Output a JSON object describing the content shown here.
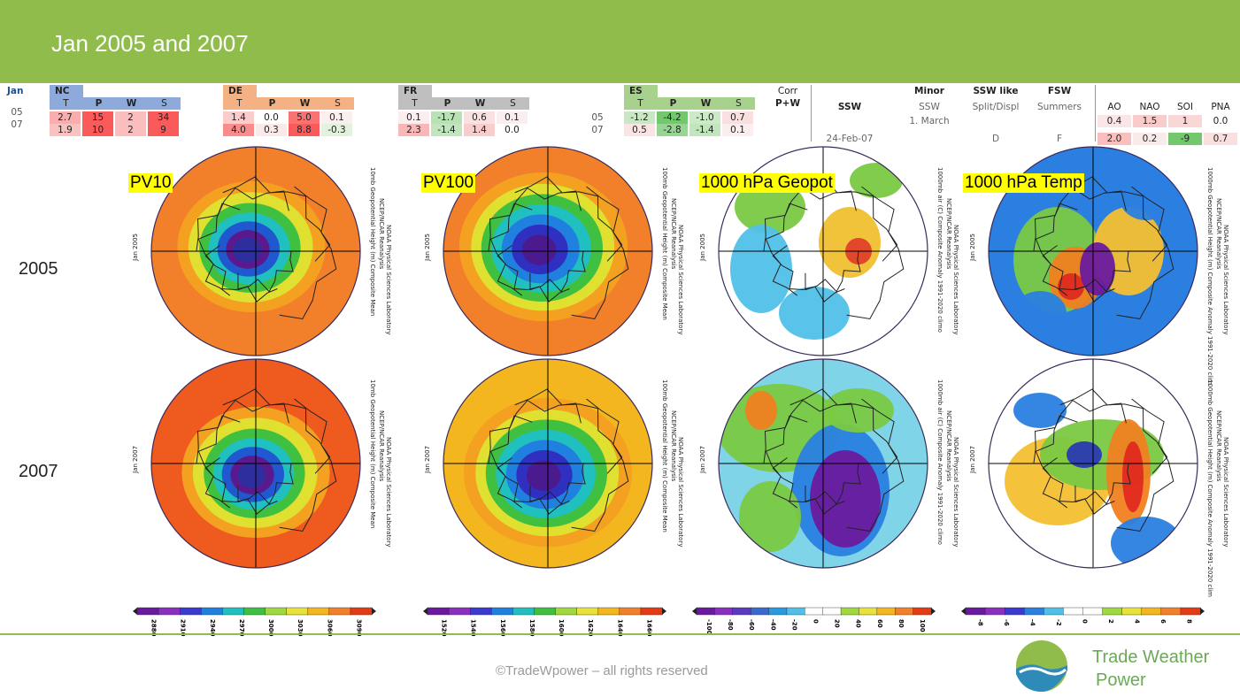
{
  "title": "Jan 2005 and 2007",
  "table": {
    "row_label_header": "Jan",
    "rows": [
      "05",
      "07"
    ],
    "groups": [
      {
        "name": "NC",
        "cols": [
          "T",
          "P",
          "W",
          "S"
        ],
        "values": [
          [
            "2.7",
            "15",
            "2",
            "34"
          ],
          [
            "1.9",
            "10",
            "2",
            "9"
          ]
        ]
      },
      {
        "name": "DE",
        "cols": [
          "T",
          "P",
          "W",
          "S"
        ],
        "values": [
          [
            "1.4",
            "0.0",
            "5.0",
            "0.1"
          ],
          [
            "4.0",
            "0.3",
            "8.8",
            "-0.3"
          ]
        ]
      },
      {
        "name": "FR",
        "cols": [
          "T",
          "P",
          "W",
          "S"
        ],
        "values": [
          [
            "0.1",
            "-1.7",
            "0.6",
            "0.1"
          ],
          [
            "2.3",
            "-1.4",
            "1.4",
            "0.0"
          ]
        ]
      },
      {
        "name": "ES",
        "cols": [
          "T",
          "P",
          "W",
          "S"
        ],
        "values": [
          [
            "-1.2",
            "-4.2",
            "-1.0",
            "0.7"
          ],
          [
            "0.5",
            "-2.8",
            "-1.4",
            "0.1"
          ]
        ]
      }
    ],
    "corr_label": "Corr",
    "corr_sub": "P+W",
    "ssw": {
      "header": "SSW",
      "v07": "24-Feb-07"
    },
    "minor": {
      "header": "Minor",
      "sub": "SSW",
      "v05": "1. March"
    },
    "ssw_like": {
      "header": "SSW like",
      "sub": "Split/Displ",
      "v07": "D"
    },
    "fsw": {
      "header": "FSW",
      "sub": "Summers",
      "v07": "F"
    },
    "indices": {
      "cols": [
        "AO",
        "NAO",
        "SOI",
        "PNA"
      ],
      "values": [
        [
          "0.4",
          "1.5",
          "1",
          "0.0"
        ],
        [
          "2.0",
          "0.2",
          "-9",
          "0.7"
        ]
      ]
    }
  },
  "rows": [
    {
      "label": "2005",
      "jan": "Jan 2005"
    },
    {
      "label": "2007",
      "jan": "Jan 2007"
    }
  ],
  "maps": [
    {
      "label": "PV10",
      "side": "10mb Geopotential Height (m) Composite Mean",
      "side2": "NCEP/NCAR Reanalysis",
      "side3": "NOAA Physical Sciences Laboratory"
    },
    {
      "label": "PV100",
      "side": "100mb Geopotential Height (m) Composite Mean",
      "side2": "NCEP/NCAR Reanalysis",
      "side3": "NOAA Physical Sciences Laboratory"
    },
    {
      "label": "1000 hPa Geopot",
      "side": "1000mb air (C) Composite Anomaly 1991-2020 climo",
      "side2": "NCEP/NCAR Reanalysis",
      "side3": "NOAA Physical Sciences Laboratory"
    },
    {
      "label": "1000 hPa Temp",
      "side": "1000mb Geopotential Height (m) Composite Anomaly 1991-2020 clim",
      "side2": "NCEP/NCAR Reanalysis",
      "side3": "NOAA Physical Sciences Laboratory"
    }
  ],
  "colorbars": [
    {
      "ticks": [
        "2880",
        "2910",
        "2940",
        "2970",
        "3000",
        "3030",
        "3060",
        "3090"
      ]
    },
    {
      "ticks": [
        "1520",
        "1540",
        "1560",
        "1580",
        "1600",
        "1620",
        "1640",
        "1660"
      ]
    },
    {
      "ticks": [
        "-100",
        "-80",
        "-60",
        "-40",
        "-20",
        "0",
        "20",
        "40",
        "60",
        "80",
        "100"
      ]
    },
    {
      "ticks": [
        "-8",
        "-6",
        "-4",
        "-2",
        "0",
        "2",
        "4",
        "6",
        "8"
      ]
    }
  ],
  "footer": {
    "copyright": "©TradeWpower – all rights reserved",
    "brand_line1": "Trade Weather",
    "brand_line2": "Power"
  },
  "colors": {
    "header_green": "#8fbc4a",
    "nc_blue": "#8eaadb",
    "de_orange": "#f4b183",
    "fr_gray": "#bfbfbf",
    "es_green": "#a9d18e",
    "brand_green": "#6aaa55"
  }
}
